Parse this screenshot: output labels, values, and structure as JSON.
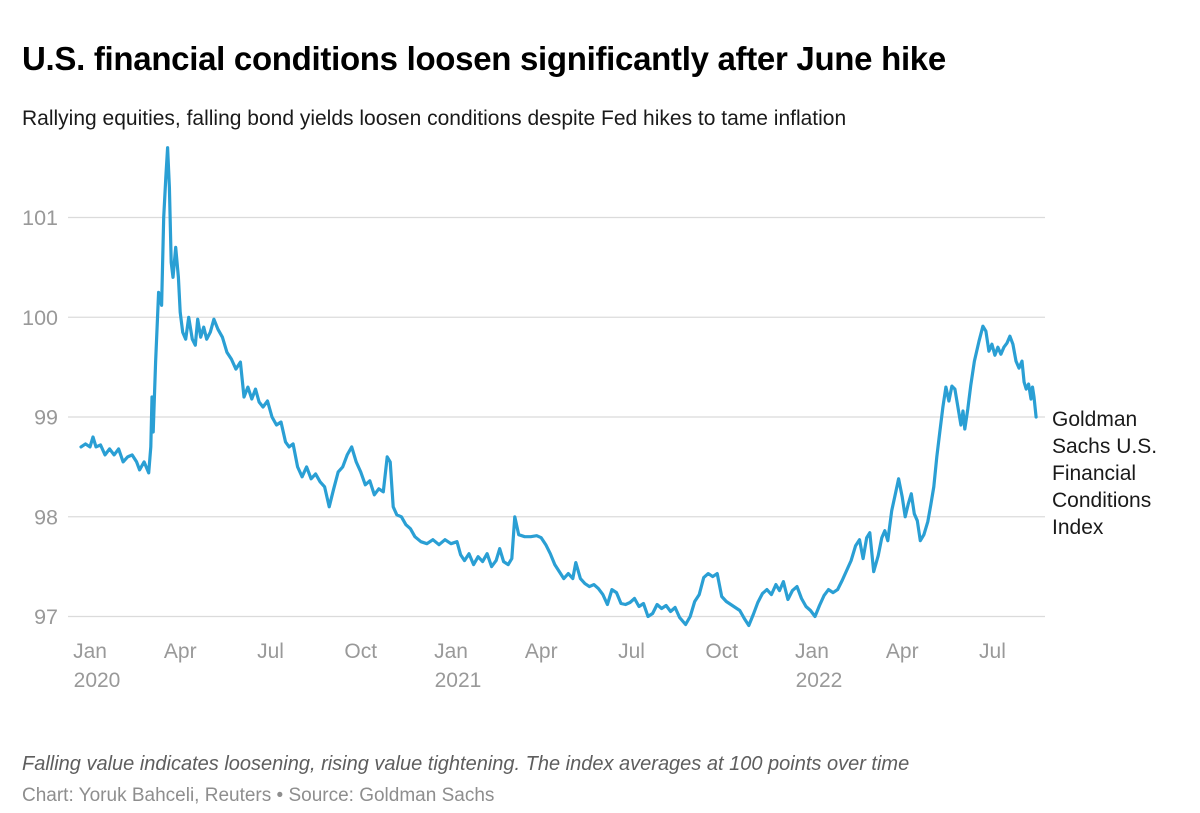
{
  "header": {
    "title": "U.S. financial conditions loosen significantly after June hike",
    "subtitle": "Rallying equities, falling bond yields loosen conditions despite Fed hikes to tame inflation"
  },
  "footer": {
    "note": "Falling value indicates loosening, rising value tightening. The index averages at 100 points over time",
    "credit": "Chart: Yoruk Bahceli, Reuters • Source: Goldman Sachs"
  },
  "chart_data": {
    "type": "line",
    "title": "U.S. financial conditions loosen significantly after June hike",
    "subtitle": "Rallying equities, falling bond yields loosen conditions despite Fed hikes to tame inflation",
    "annotation": "Goldman Sachs U.S. Financial Conditions Index",
    "x_unit": "months since Jan 2020 (fractional = days within month)",
    "xlabel": "",
    "ylabel": "",
    "xlim": [
      -0.5,
      31.8
    ],
    "ylim": [
      96.85,
      101.78
    ],
    "grid": "horizontal",
    "legend_position": "right-of-line-end",
    "colors": {
      "line": "#2a9fd4",
      "grid": "#dbdbdb",
      "axis_text": "#999999"
    },
    "y_ticks": [
      101,
      100,
      99,
      98,
      97
    ],
    "x_ticks": [
      {
        "m": 0,
        "label": "Jan",
        "year": "2020"
      },
      {
        "m": 3,
        "label": "Apr",
        "year": ""
      },
      {
        "m": 6,
        "label": "Jul",
        "year": ""
      },
      {
        "m": 9,
        "label": "Oct",
        "year": ""
      },
      {
        "m": 12,
        "label": "Jan",
        "year": "2021"
      },
      {
        "m": 15,
        "label": "Apr",
        "year": ""
      },
      {
        "m": 18,
        "label": "Jul",
        "year": ""
      },
      {
        "m": 21,
        "label": "Oct",
        "year": ""
      },
      {
        "m": 24,
        "label": "Jan",
        "year": "2022"
      },
      {
        "m": 27,
        "label": "Apr",
        "year": ""
      },
      {
        "m": 30,
        "label": "Jul",
        "year": ""
      }
    ],
    "series": [
      {
        "name": "Goldman Sachs U.S. Financial Conditions Index",
        "points": [
          [
            -0.3,
            98.7
          ],
          [
            -0.15,
            98.73
          ],
          [
            0,
            98.7
          ],
          [
            0.1,
            98.8
          ],
          [
            0.2,
            98.7
          ],
          [
            0.35,
            98.72
          ],
          [
            0.5,
            98.62
          ],
          [
            0.65,
            98.68
          ],
          [
            0.8,
            98.62
          ],
          [
            0.95,
            98.68
          ],
          [
            1.1,
            98.55
          ],
          [
            1.25,
            98.6
          ],
          [
            1.4,
            98.62
          ],
          [
            1.55,
            98.55
          ],
          [
            1.65,
            98.47
          ],
          [
            1.8,
            98.55
          ],
          [
            1.95,
            98.44
          ],
          [
            2.02,
            98.7
          ],
          [
            2.06,
            99.2
          ],
          [
            2.1,
            98.85
          ],
          [
            2.18,
            99.55
          ],
          [
            2.28,
            100.25
          ],
          [
            2.38,
            100.12
          ],
          [
            2.45,
            101
          ],
          [
            2.52,
            101.4
          ],
          [
            2.58,
            101.7
          ],
          [
            2.64,
            101.3
          ],
          [
            2.7,
            100.55
          ],
          [
            2.76,
            100.4
          ],
          [
            2.85,
            100.7
          ],
          [
            2.94,
            100.4
          ],
          [
            3,
            100.05
          ],
          [
            3.08,
            99.85
          ],
          [
            3.18,
            99.78
          ],
          [
            3.28,
            100
          ],
          [
            3.4,
            99.78
          ],
          [
            3.5,
            99.72
          ],
          [
            3.58,
            99.98
          ],
          [
            3.68,
            99.8
          ],
          [
            3.78,
            99.9
          ],
          [
            3.88,
            99.78
          ],
          [
            4,
            99.85
          ],
          [
            4.12,
            99.98
          ],
          [
            4.25,
            99.88
          ],
          [
            4.4,
            99.8
          ],
          [
            4.55,
            99.65
          ],
          [
            4.7,
            99.58
          ],
          [
            4.85,
            99.48
          ],
          [
            5,
            99.55
          ],
          [
            5.12,
            99.2
          ],
          [
            5.25,
            99.3
          ],
          [
            5.38,
            99.18
          ],
          [
            5.5,
            99.28
          ],
          [
            5.62,
            99.15
          ],
          [
            5.75,
            99.1
          ],
          [
            5.9,
            99.16
          ],
          [
            6.05,
            99
          ],
          [
            6.2,
            98.92
          ],
          [
            6.35,
            98.95
          ],
          [
            6.5,
            98.75
          ],
          [
            6.62,
            98.7
          ],
          [
            6.75,
            98.73
          ],
          [
            6.9,
            98.5
          ],
          [
            7.05,
            98.4
          ],
          [
            7.2,
            98.5
          ],
          [
            7.35,
            98.38
          ],
          [
            7.5,
            98.43
          ],
          [
            7.65,
            98.35
          ],
          [
            7.8,
            98.3
          ],
          [
            7.95,
            98.1
          ],
          [
            8.1,
            98.28
          ],
          [
            8.25,
            98.45
          ],
          [
            8.4,
            98.5
          ],
          [
            8.55,
            98.62
          ],
          [
            8.7,
            98.7
          ],
          [
            8.85,
            98.55
          ],
          [
            9,
            98.45
          ],
          [
            9.15,
            98.32
          ],
          [
            9.3,
            98.36
          ],
          [
            9.45,
            98.22
          ],
          [
            9.6,
            98.28
          ],
          [
            9.75,
            98.25
          ],
          [
            9.88,
            98.6
          ],
          [
            9.98,
            98.55
          ],
          [
            10.08,
            98.1
          ],
          [
            10.2,
            98.02
          ],
          [
            10.35,
            98
          ],
          [
            10.5,
            97.92
          ],
          [
            10.65,
            97.88
          ],
          [
            10.8,
            97.8
          ],
          [
            11,
            97.75
          ],
          [
            11.2,
            97.73
          ],
          [
            11.4,
            97.77
          ],
          [
            11.6,
            97.72
          ],
          [
            11.8,
            97.77
          ],
          [
            12,
            97.73
          ],
          [
            12.2,
            97.75
          ],
          [
            12.32,
            97.62
          ],
          [
            12.45,
            97.56
          ],
          [
            12.6,
            97.63
          ],
          [
            12.75,
            97.52
          ],
          [
            12.9,
            97.6
          ],
          [
            13.05,
            97.55
          ],
          [
            13.2,
            97.63
          ],
          [
            13.35,
            97.5
          ],
          [
            13.5,
            97.56
          ],
          [
            13.62,
            97.68
          ],
          [
            13.75,
            97.55
          ],
          [
            13.9,
            97.52
          ],
          [
            14.02,
            97.58
          ],
          [
            14.12,
            98
          ],
          [
            14.25,
            97.82
          ],
          [
            14.45,
            97.8
          ],
          [
            14.65,
            97.8
          ],
          [
            14.85,
            97.81
          ],
          [
            15,
            97.79
          ],
          [
            15.15,
            97.72
          ],
          [
            15.3,
            97.63
          ],
          [
            15.45,
            97.52
          ],
          [
            15.6,
            97.45
          ],
          [
            15.75,
            97.38
          ],
          [
            15.9,
            97.43
          ],
          [
            16.05,
            97.38
          ],
          [
            16.15,
            97.54
          ],
          [
            16.3,
            97.38
          ],
          [
            16.45,
            97.33
          ],
          [
            16.6,
            97.3
          ],
          [
            16.75,
            97.32
          ],
          [
            16.9,
            97.28
          ],
          [
            17.05,
            97.22
          ],
          [
            17.2,
            97.12
          ],
          [
            17.35,
            97.27
          ],
          [
            17.5,
            97.24
          ],
          [
            17.65,
            97.13
          ],
          [
            17.8,
            97.12
          ],
          [
            17.95,
            97.14
          ],
          [
            18.1,
            97.18
          ],
          [
            18.25,
            97.1
          ],
          [
            18.4,
            97.13
          ],
          [
            18.55,
            97
          ],
          [
            18.7,
            97.03
          ],
          [
            18.85,
            97.12
          ],
          [
            19,
            97.08
          ],
          [
            19.15,
            97.11
          ],
          [
            19.3,
            97.05
          ],
          [
            19.45,
            97.09
          ],
          [
            19.6,
            96.99
          ],
          [
            19.8,
            96.92
          ],
          [
            19.95,
            97
          ],
          [
            20.1,
            97.15
          ],
          [
            20.25,
            97.22
          ],
          [
            20.4,
            97.39
          ],
          [
            20.55,
            97.43
          ],
          [
            20.7,
            97.4
          ],
          [
            20.85,
            97.43
          ],
          [
            21,
            97.2
          ],
          [
            21.15,
            97.15
          ],
          [
            21.3,
            97.12
          ],
          [
            21.45,
            97.09
          ],
          [
            21.6,
            97.06
          ],
          [
            21.75,
            96.98
          ],
          [
            21.9,
            96.91
          ],
          [
            22.05,
            97.02
          ],
          [
            22.2,
            97.14
          ],
          [
            22.35,
            97.23
          ],
          [
            22.5,
            97.27
          ],
          [
            22.65,
            97.22
          ],
          [
            22.8,
            97.32
          ],
          [
            22.92,
            97.26
          ],
          [
            23.05,
            97.35
          ],
          [
            23.2,
            97.17
          ],
          [
            23.35,
            97.26
          ],
          [
            23.5,
            97.3
          ],
          [
            23.65,
            97.18
          ],
          [
            23.8,
            97.1
          ],
          [
            23.95,
            97.06
          ],
          [
            24.1,
            97
          ],
          [
            24.25,
            97.11
          ],
          [
            24.4,
            97.21
          ],
          [
            24.55,
            97.27
          ],
          [
            24.7,
            97.24
          ],
          [
            24.85,
            97.27
          ],
          [
            25,
            97.36
          ],
          [
            25.15,
            97.46
          ],
          [
            25.3,
            97.56
          ],
          [
            25.45,
            97.71
          ],
          [
            25.58,
            97.77
          ],
          [
            25.7,
            97.58
          ],
          [
            25.82,
            97.79
          ],
          [
            25.92,
            97.84
          ],
          [
            26.05,
            97.45
          ],
          [
            26.2,
            97.61
          ],
          [
            26.32,
            97.79
          ],
          [
            26.42,
            97.86
          ],
          [
            26.52,
            97.76
          ],
          [
            26.65,
            98.06
          ],
          [
            26.78,
            98.24
          ],
          [
            26.88,
            98.38
          ],
          [
            27,
            98.2
          ],
          [
            27.1,
            98
          ],
          [
            27.2,
            98.13
          ],
          [
            27.3,
            98.23
          ],
          [
            27.4,
            98.03
          ],
          [
            27.5,
            97.96
          ],
          [
            27.6,
            97.76
          ],
          [
            27.72,
            97.82
          ],
          [
            27.85,
            97.95
          ],
          [
            27.95,
            98.12
          ],
          [
            28.05,
            98.3
          ],
          [
            28.15,
            98.6
          ],
          [
            28.25,
            98.85
          ],
          [
            28.35,
            99.1
          ],
          [
            28.45,
            99.3
          ],
          [
            28.55,
            99.16
          ],
          [
            28.65,
            99.31
          ],
          [
            28.75,
            99.28
          ],
          [
            28.85,
            99.1
          ],
          [
            28.95,
            98.92
          ],
          [
            29.02,
            99.06
          ],
          [
            29.08,
            98.88
          ],
          [
            29.18,
            99.08
          ],
          [
            29.28,
            99.32
          ],
          [
            29.4,
            99.56
          ],
          [
            29.55,
            99.76
          ],
          [
            29.68,
            99.91
          ],
          [
            29.78,
            99.86
          ],
          [
            29.88,
            99.66
          ],
          [
            29.98,
            99.73
          ],
          [
            30.08,
            99.62
          ],
          [
            30.18,
            99.7
          ],
          [
            30.28,
            99.63
          ],
          [
            30.38,
            99.7
          ],
          [
            30.48,
            99.74
          ],
          [
            30.58,
            99.81
          ],
          [
            30.68,
            99.73
          ],
          [
            30.78,
            99.56
          ],
          [
            30.88,
            99.49
          ],
          [
            30.98,
            99.56
          ],
          [
            31.05,
            99.35
          ],
          [
            31.12,
            99.28
          ],
          [
            31.2,
            99.33
          ],
          [
            31.28,
            99.18
          ],
          [
            31.33,
            99.3
          ],
          [
            31.38,
            99.2
          ],
          [
            31.45,
            99
          ]
        ]
      }
    ]
  }
}
